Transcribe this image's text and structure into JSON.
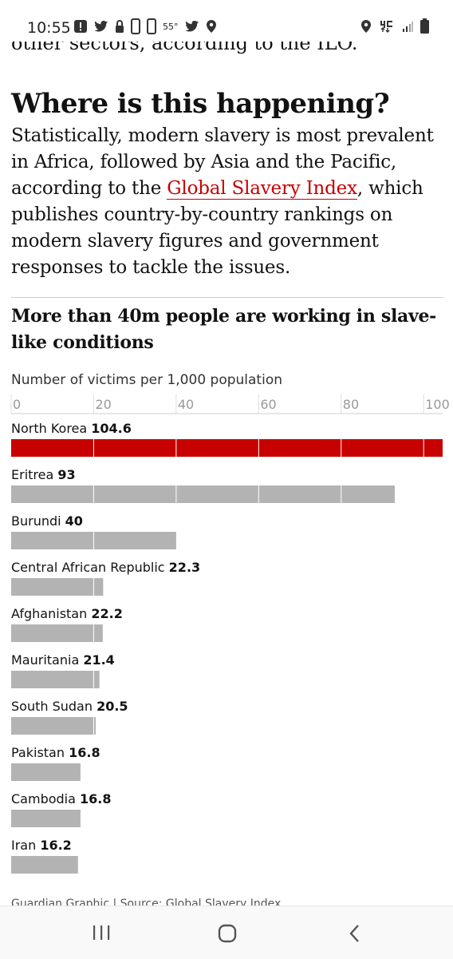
{
  "status_bar": {
    "time": "10:55",
    "temperature": "55°",
    "left_icons": [
      "alert-icon",
      "twitter-icon",
      "lock-icon",
      "phone-icon",
      "phone-icon",
      "twitter-icon",
      "location-icon"
    ],
    "right_icons": [
      "location-icon",
      "4g-lte-icon",
      "signal-icon",
      "battery-icon"
    ]
  },
  "article": {
    "cut_text": "other sectors, according to the ILO.",
    "heading": "Where is this happening?",
    "paragraph_before": "Statistically, modern slavery is most prevalent in Africa, followed by Asia and the Pacific, according to the ",
    "link_text": "Global Slavery Index",
    "paragraph_after": ", which publishes country-by-country rankings on modern slavery figures and government responses to tackle the issues."
  },
  "chart_data": {
    "type": "bar",
    "orientation": "horizontal",
    "title": "More than 40m people are working in slave-like conditions",
    "subtitle": "Number of victims per 1,000 population",
    "categories": [
      "North Korea",
      "Eritrea",
      "Burundi",
      "Central African Republic",
      "Afghanistan",
      "Mauritania",
      "South Sudan",
      "Pakistan",
      "Cambodia",
      "Iran"
    ],
    "values": [
      104.6,
      93,
      40,
      22.3,
      22.2,
      21.4,
      20.5,
      16.8,
      16.8,
      16.2
    ],
    "value_labels": [
      "104.6",
      "93",
      "40",
      "22.3",
      "22.2",
      "21.4",
      "20.5",
      "16.8",
      "16.8",
      "16.2"
    ],
    "x_ticks": [
      0,
      20,
      40,
      60,
      80,
      100
    ],
    "x_tick_labels": [
      "0",
      "20",
      "40",
      "60",
      "80",
      "100"
    ],
    "xlim": [
      0,
      104.6
    ],
    "grid": true,
    "colors": {
      "highlight": "#c70000",
      "default": "#b3b3b3",
      "gridline": "#ffffff"
    },
    "source": "Guardian Graphic | Source: Global Slavery Index"
  },
  "nav_bar": {
    "icons": [
      "recent-apps-icon",
      "home-icon",
      "back-icon"
    ]
  }
}
